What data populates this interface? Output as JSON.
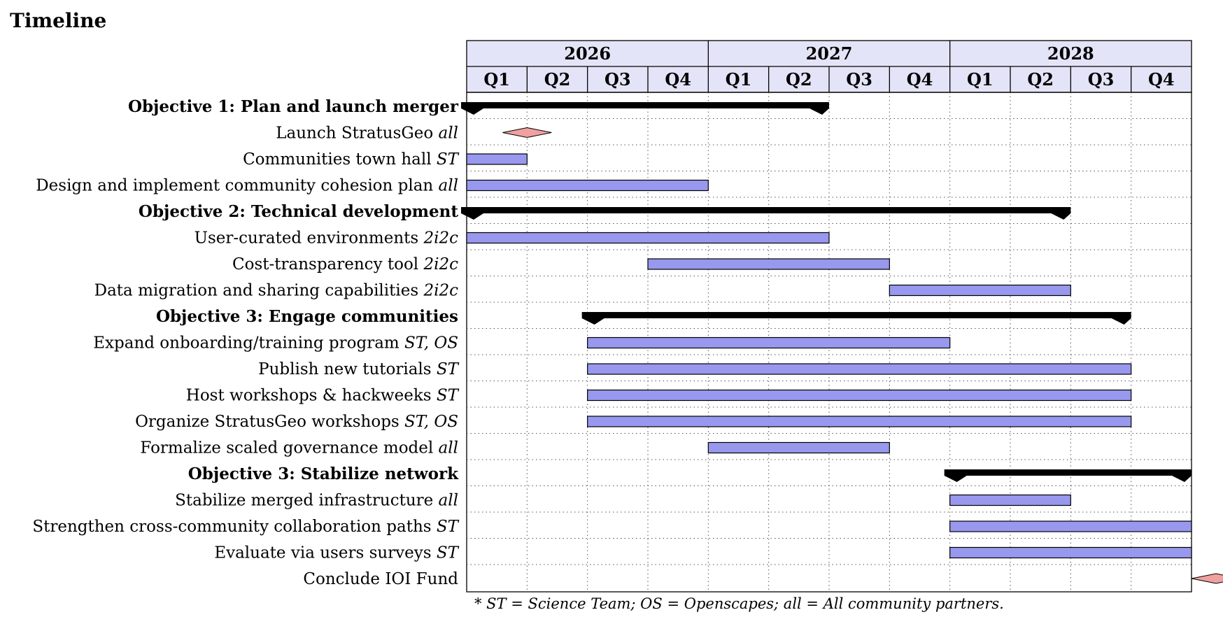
{
  "page_title": "Timeline",
  "chart_data": {
    "type": "gantt",
    "title": "Timeline",
    "years": [
      "2026",
      "2027",
      "2028"
    ],
    "quarters": [
      "Q1",
      "Q2",
      "Q3",
      "Q4",
      "Q1",
      "Q2",
      "Q3",
      "Q4",
      "Q1",
      "Q2",
      "Q3",
      "Q4"
    ],
    "rows": [
      {
        "kind": "group",
        "label": "Objective 1: Plan and launch merger",
        "team": "",
        "start": 0,
        "end": 6
      },
      {
        "kind": "milestone",
        "label": "Launch StratusGeo",
        "team": "all",
        "at": 1
      },
      {
        "kind": "bar",
        "label": "Communities town hall",
        "team": "ST",
        "start": 0,
        "end": 1
      },
      {
        "kind": "bar",
        "label": "Design and implement community cohesion plan",
        "team": "all",
        "start": 0,
        "end": 4
      },
      {
        "kind": "group",
        "label": "Objective 2: Technical development",
        "team": "",
        "start": 0,
        "end": 10
      },
      {
        "kind": "bar",
        "label": "User-curated environments",
        "team": "2i2c",
        "start": 0,
        "end": 6
      },
      {
        "kind": "bar",
        "label": "Cost-transparency tool",
        "team": "2i2c",
        "start": 3,
        "end": 7
      },
      {
        "kind": "bar",
        "label": "Data migration and sharing capabilities",
        "team": "2i2c",
        "start": 7,
        "end": 10
      },
      {
        "kind": "group",
        "label": "Objective 3: Engage communities",
        "team": "",
        "start": 2,
        "end": 11
      },
      {
        "kind": "bar",
        "label": "Expand onboarding/training program",
        "team": "ST, OS",
        "start": 2,
        "end": 8
      },
      {
        "kind": "bar",
        "label": "Publish new tutorials",
        "team": "ST",
        "start": 2,
        "end": 11
      },
      {
        "kind": "bar",
        "label": "Host workshops & hackweeks",
        "team": "ST",
        "start": 2,
        "end": 11
      },
      {
        "kind": "bar",
        "label": "Organize StratusGeo workshops",
        "team": "ST, OS",
        "start": 2,
        "end": 11
      },
      {
        "kind": "bar",
        "label": "Formalize scaled governance model",
        "team": "all",
        "start": 4,
        "end": 7
      },
      {
        "kind": "group",
        "label": "Objective 3: Stabilize network",
        "team": "",
        "start": 8,
        "end": 12
      },
      {
        "kind": "bar",
        "label": "Stabilize merged infrastructure",
        "team": "all",
        "start": 8,
        "end": 10
      },
      {
        "kind": "bar",
        "label": "Strengthen cross-community collaboration paths",
        "team": "ST",
        "start": 8,
        "end": 12
      },
      {
        "kind": "bar",
        "label": "Evaluate via users surveys",
        "team": "ST",
        "start": 8,
        "end": 12
      },
      {
        "kind": "milestone",
        "label": "Conclude IOI Fund",
        "team": "",
        "at": 12
      }
    ],
    "footnote": "* ST = Science Team; OS = Openscapes; all = All community partners.",
    "colors": {
      "header_fill": "#e4e4f8",
      "bar_fill": "#9898ee",
      "group_fill": "#000000",
      "milestone_fill": "#f0a0a0",
      "grid": "#555555"
    }
  }
}
